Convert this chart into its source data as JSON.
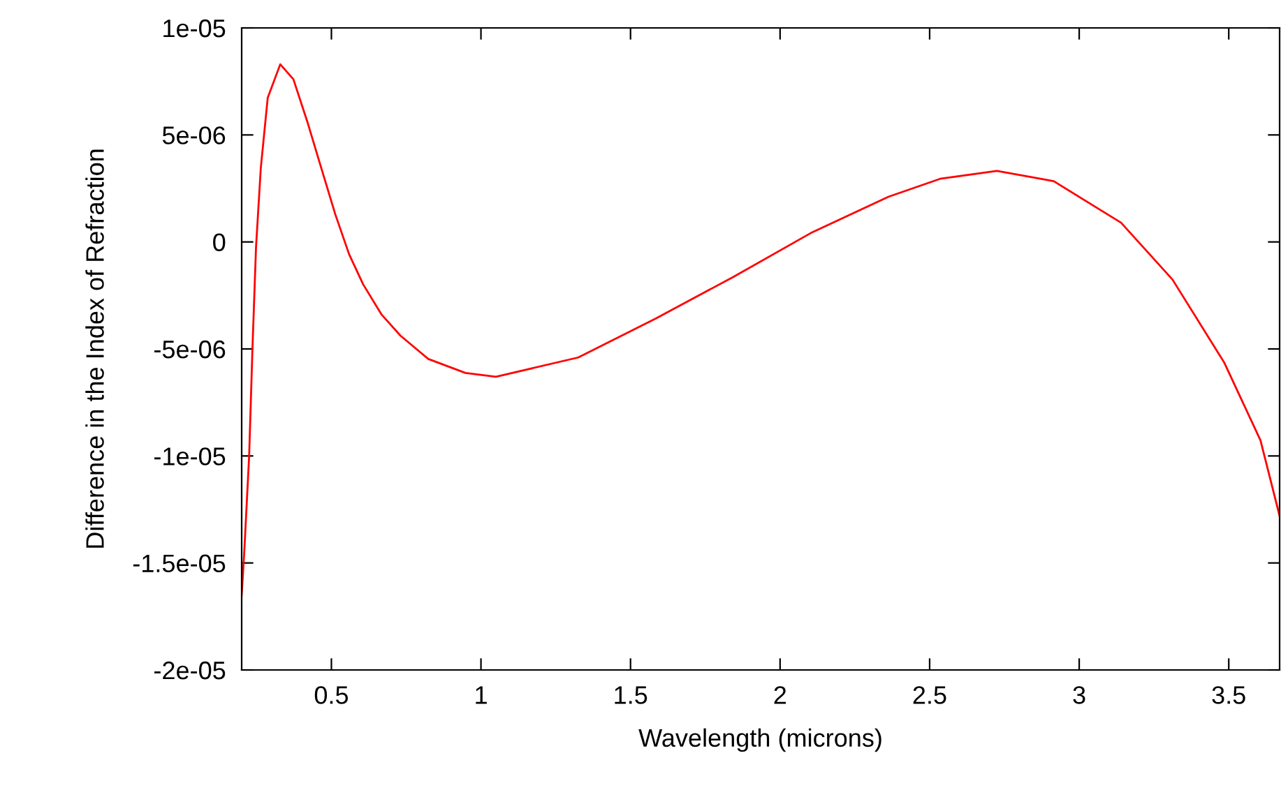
{
  "chart_data": {
    "type": "line",
    "xlabel": "Wavelength (microns)",
    "ylabel": "Difference in the Index of Refraction",
    "xlim": [
      0.2,
      3.67
    ],
    "ylim": [
      -2e-05,
      1e-05
    ],
    "xticks": [
      0.5,
      1,
      1.5,
      2,
      2.5,
      3,
      3.5
    ],
    "yticks": [
      -2e-05,
      -1.5e-05,
      -1e-05,
      -5e-06,
      0,
      5e-06,
      1e-05
    ],
    "marker": "none",
    "line_style": "solid",
    "series": [
      {
        "color": "#ff0000",
        "x": [
          0.2,
          0.209,
          0.225,
          0.236,
          0.248,
          0.264,
          0.287,
          0.329,
          0.373,
          0.419,
          0.466,
          0.513,
          0.559,
          0.606,
          0.668,
          0.731,
          0.824,
          0.948,
          1.05,
          1.325,
          1.584,
          1.843,
          2.102,
          2.362,
          2.535,
          2.725,
          2.915,
          3.14,
          3.312,
          3.485,
          3.606,
          3.67
        ],
        "values": [
          -1.65e-05,
          -1.44e-05,
          -1e-05,
          -5e-06,
          -2.4e-07,
          3.46e-06,
          6.73e-06,
          8.3e-06,
          7.6e-06,
          5.64e-06,
          3.46e-06,
          1.29e-06,
          -5.7e-07,
          -1.98e-06,
          -3.4e-06,
          -4.38e-06,
          -5.47e-06,
          -6.12e-06,
          -6.3e-06,
          -5.4e-06,
          -3.58e-06,
          -1.64e-06,
          4.1e-07,
          2.11e-06,
          2.95e-06,
          3.32e-06,
          2.84e-06,
          9e-07,
          -1.76e-06,
          -5.64e-06,
          -9.27e-06,
          -1.28e-05
        ]
      }
    ]
  }
}
